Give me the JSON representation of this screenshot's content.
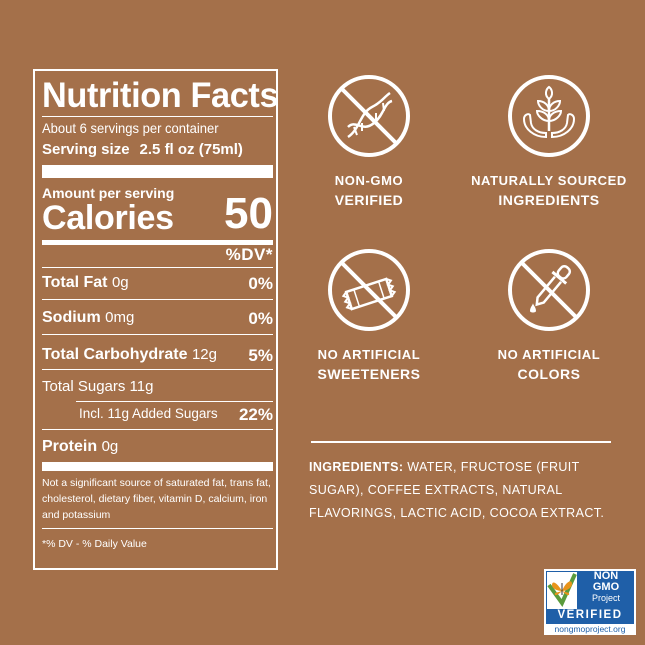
{
  "nutrition": {
    "title": "Nutrition Facts",
    "servings_per_container": "About 6 servings per container",
    "serving_size_label": "Serving size",
    "serving_size_value": "2.5 fl oz (75ml)",
    "amount_per_serving": "Amount per serving",
    "calories_label": "Calories",
    "calories_value": "50",
    "dv_header": "%DV*",
    "rows": [
      {
        "name": "Total Fat",
        "amount": "0g",
        "dv": "0%"
      },
      {
        "name": "Sodium",
        "amount": "0mg",
        "dv": "0%"
      },
      {
        "name": "Total Carbohydrate",
        "amount": "12g",
        "dv": "5%"
      },
      {
        "name": "Total Sugars 11g",
        "amount": "",
        "dv": ""
      },
      {
        "name": "Incl. 11g Added Sugars",
        "amount": "",
        "dv": "22%"
      },
      {
        "name": "Protein",
        "amount": "0g",
        "dv": ""
      }
    ],
    "footnote": "Not a significant source of saturated fat, trans fat, cholesterol, dietary fiber, vitamin D, calcium, iron and potassium",
    "dv_note": "*% DV - % Daily Value"
  },
  "badges": [
    {
      "icon": "no-dna-icon",
      "line1": "NON-GMO",
      "line2": "VERIFIED"
    },
    {
      "icon": "plant-in-hands-icon",
      "line1": "NATURALLY SOURCED",
      "line2": "INGREDIENTS"
    },
    {
      "icon": "no-sweetener-packet-icon",
      "line1": "NO ARTIFICIAL",
      "line2": "SWEETENERS"
    },
    {
      "icon": "no-dropper-icon",
      "line1": "NO ARTIFICIAL",
      "line2": "COLORS"
    }
  ],
  "ingredients": {
    "label": "INGREDIENTS:",
    "text": " WATER, FRUCTOSE (FRUIT SUGAR), COFFEE EXTRACTS, NATURAL FLAVORINGS, LACTIC ACID, COCOA EXTRACT."
  },
  "nongmo_logo": {
    "line1": "NON",
    "line2": "GMO",
    "line3": "Project",
    "line4": "VERIFIED",
    "url": "nongmoproject.org"
  },
  "colors": {
    "background": "#a4704a",
    "foreground": "#ffffff",
    "nongmo_blue": "#1f5fa8",
    "nongmo_green": "#5a9a3c",
    "nongmo_orange": "#e8941a"
  }
}
